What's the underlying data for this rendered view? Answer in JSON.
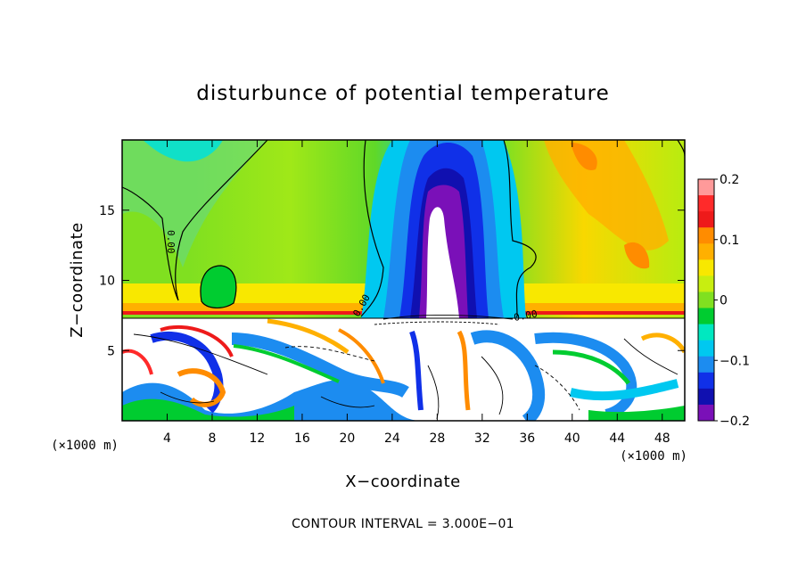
{
  "chart_data": {
    "type": "heatmap",
    "title": "disturbunce of potential temperature",
    "xlabel": "X−coordinate",
    "ylabel": "Z−coordinate",
    "x_unit_left": "(×1000 m)",
    "x_unit_right": "(×1000 m)",
    "xlim": [
      0,
      50
    ],
    "ylim": [
      0,
      20
    ],
    "x_ticks": [
      4,
      8,
      12,
      16,
      20,
      24,
      28,
      32,
      36,
      40,
      44,
      48
    ],
    "x_tick_labels": [
      "4",
      "8",
      "12",
      "16",
      "20",
      "24",
      "28",
      "32",
      "36",
      "40",
      "44",
      "48"
    ],
    "y_ticks": [
      5,
      10,
      15
    ],
    "y_tick_labels": [
      "5",
      "10",
      "15"
    ],
    "colorbar": {
      "range": [
        -0.2,
        0.2
      ],
      "ticks": [
        0.2,
        0.1,
        0,
        -0.1,
        -0.2
      ],
      "tick_labels": [
        "0.2",
        "0.1",
        "0",
        "−0.1",
        "−0.2"
      ],
      "colors": [
        "#ff9a9a",
        "#ff2a2a",
        "#ee1a1a",
        "#ff8c00",
        "#ffb000",
        "#f8e800",
        "#c8ee10",
        "#80e020",
        "#00cc30",
        "#00e8c0",
        "#00c8f0",
        "#1c8cf0",
        "#1030e8",
        "#1010b0",
        "#7a10b8"
      ]
    },
    "contour_labels": [
      "0.00",
      "0.00",
      "0.00"
    ],
    "contour_interval_text": "CONTOUR INTERVAL = 3.000E−01"
  }
}
